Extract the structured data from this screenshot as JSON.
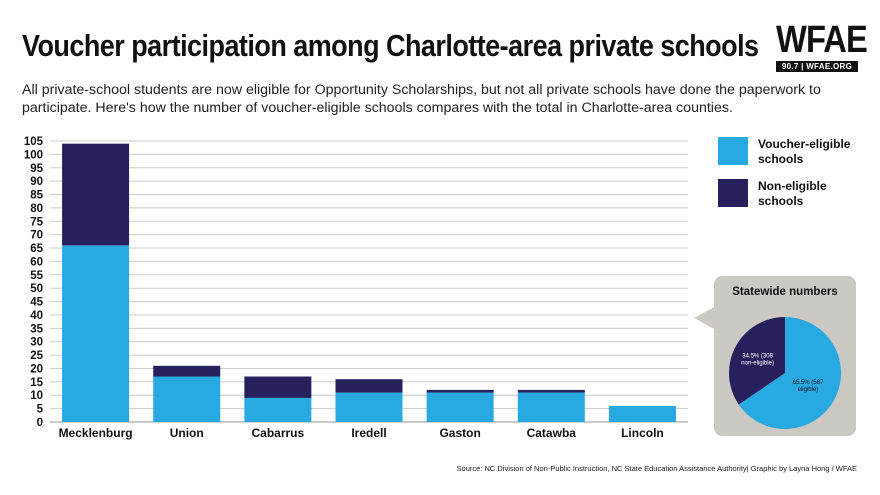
{
  "header": {
    "title": "Voucher participation among Charlotte-area private schools",
    "subtitle": "All private-school students are now eligible for Opportunity Scholarships, but not all private schools have done the paperwork to participate. Here's how the number of voucher-eligible schools compares with the total in Charlotte-area counties."
  },
  "logo": {
    "main": "WFAE",
    "sub": "90.7 | WFAE.ORG"
  },
  "colors": {
    "eligible": "#29a9e1",
    "non_eligible": "#26215c",
    "grid": "#cccccc",
    "panel": "#ccc8c4"
  },
  "chart_data": {
    "type": "bar",
    "stacked": true,
    "categories": [
      "Mecklenburg",
      "Union",
      "Cabarrus",
      "Iredell",
      "Gaston",
      "Catawba",
      "Lincoln"
    ],
    "series": [
      {
        "name": "Voucher-eligible schools",
        "values": [
          66,
          17,
          9,
          11,
          11,
          11,
          6
        ]
      },
      {
        "name": "Non-eligible schools",
        "values": [
          38,
          4,
          8,
          5,
          1,
          1,
          0
        ]
      }
    ],
    "ylim": [
      0,
      105
    ],
    "yticks": [
      "0",
      "5",
      "10",
      "15",
      "20",
      "25",
      "30",
      "35",
      "40",
      "45",
      "50",
      "55",
      "60",
      "65",
      "70",
      "75",
      "80",
      "85",
      "90",
      "95",
      "100",
      "105"
    ],
    "xlabel": "",
    "ylabel": "",
    "grid": true,
    "legend": [
      "Voucher-eligible schools",
      "Non-eligible schools"
    ],
    "inset_pie": {
      "title": "Statewide numbers",
      "slices": [
        {
          "name": "eligible",
          "value": 65.5,
          "label_lines": [
            "65.5% (587",
            "eligible)"
          ]
        },
        {
          "name": "non-eligible",
          "value": 34.5,
          "label_lines": [
            "34.5% (308",
            "non-eligible)"
          ]
        }
      ]
    }
  },
  "legend": {
    "eligible": [
      "Voucher-eligible",
      "schools"
    ],
    "non_eligible": [
      "Non-eligible",
      "schools"
    ]
  },
  "source": "Source: NC Division of Non-Public Instruction, NC State Education Assistance Authority| Graphic by Layna Hong / WFAE"
}
